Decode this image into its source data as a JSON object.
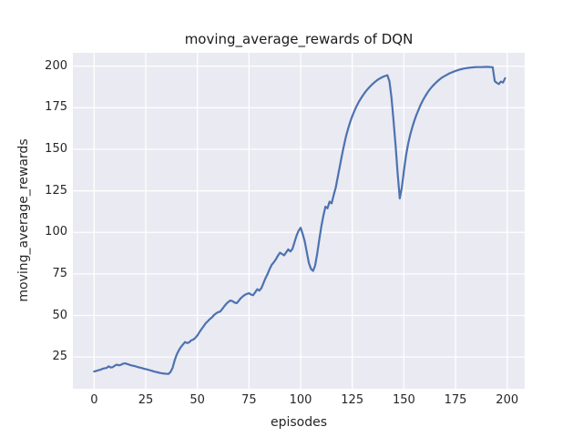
{
  "figure": {
    "background": "#ffffff"
  },
  "chart_data": {
    "type": "line",
    "title": "moving_average_rewards of DQN",
    "xlabel": "episodes",
    "ylabel": "moving_average_rewards",
    "x_ticks": [
      0,
      25,
      50,
      75,
      100,
      125,
      150,
      175,
      200
    ],
    "y_ticks": [
      25,
      50,
      75,
      100,
      125,
      150,
      175,
      200
    ],
    "xlim": [
      -10.3,
      208.5
    ],
    "ylim": [
      5.9,
      208.1
    ],
    "grid": true,
    "legend_position": "none",
    "style": {
      "line_color": "#4c72b0",
      "axes_background": "#eaeaf2",
      "grid_color": "#ffffff",
      "text_color": "#262626",
      "line_width": 2.2
    },
    "series": [
      {
        "name": "DQN moving average reward",
        "points": [
          [
            0,
            16.3
          ],
          [
            1,
            16.6
          ],
          [
            2,
            17.0
          ],
          [
            3,
            17.3
          ],
          [
            4,
            17.9
          ],
          [
            5,
            18.2
          ],
          [
            6,
            18.4
          ],
          [
            7,
            19.4
          ],
          [
            8,
            18.7
          ],
          [
            9,
            18.9
          ],
          [
            10,
            19.8
          ],
          [
            11,
            20.4
          ],
          [
            12,
            20.0
          ],
          [
            13,
            20.3
          ],
          [
            14,
            21.0
          ],
          [
            15,
            21.2
          ],
          [
            16,
            20.8
          ],
          [
            17,
            20.4
          ],
          [
            18,
            20.0
          ],
          [
            19,
            19.7
          ],
          [
            20,
            19.4
          ],
          [
            21,
            19.0
          ],
          [
            22,
            18.7
          ],
          [
            23,
            18.4
          ],
          [
            24,
            18.0
          ],
          [
            25,
            17.7
          ],
          [
            26,
            17.4
          ],
          [
            27,
            17.0
          ],
          [
            28,
            16.7
          ],
          [
            29,
            16.3
          ],
          [
            30,
            16.0
          ],
          [
            31,
            15.7
          ],
          [
            32,
            15.4
          ],
          [
            33,
            15.2
          ],
          [
            34,
            15.0
          ],
          [
            35,
            14.9
          ],
          [
            36,
            14.8
          ],
          [
            37,
            16.0
          ],
          [
            38,
            18.5
          ],
          [
            39,
            23.0
          ],
          [
            40,
            26.5
          ],
          [
            41,
            29.0
          ],
          [
            42,
            31.0
          ],
          [
            43,
            32.5
          ],
          [
            44,
            34.0
          ],
          [
            45,
            33.4
          ],
          [
            46,
            33.8
          ],
          [
            47,
            35.0
          ],
          [
            48,
            35.5
          ],
          [
            49,
            36.5
          ],
          [
            50,
            38.0
          ],
          [
            51,
            40.0
          ],
          [
            52,
            41.8
          ],
          [
            53,
            43.5
          ],
          [
            54,
            45.3
          ],
          [
            55,
            46.5
          ],
          [
            56,
            47.8
          ],
          [
            57,
            48.8
          ],
          [
            58,
            50.2
          ],
          [
            59,
            51.2
          ],
          [
            60,
            52.0
          ],
          [
            61,
            52.3
          ],
          [
            62,
            53.8
          ],
          [
            63,
            55.5
          ],
          [
            64,
            57.0
          ],
          [
            65,
            58.2
          ],
          [
            66,
            59.0
          ],
          [
            67,
            58.6
          ],
          [
            68,
            57.8
          ],
          [
            69,
            57.4
          ],
          [
            70,
            58.8
          ],
          [
            71,
            60.4
          ],
          [
            72,
            61.5
          ],
          [
            73,
            62.4
          ],
          [
            74,
            63.0
          ],
          [
            75,
            63.4
          ],
          [
            76,
            62.6
          ],
          [
            77,
            62.2
          ],
          [
            78,
            64.0
          ],
          [
            79,
            65.8
          ],
          [
            80,
            65.0
          ],
          [
            81,
            66.5
          ],
          [
            82,
            69.5
          ],
          [
            83,
            72.5
          ],
          [
            84,
            75.0
          ],
          [
            85,
            78.0
          ],
          [
            86,
            80.5
          ],
          [
            87,
            82.0
          ],
          [
            88,
            83.8
          ],
          [
            89,
            86.0
          ],
          [
            90,
            87.8
          ],
          [
            91,
            87.0
          ],
          [
            92,
            86.2
          ],
          [
            93,
            88.0
          ],
          [
            94,
            89.8
          ],
          [
            95,
            88.5
          ],
          [
            96,
            90.0
          ],
          [
            97,
            94.0
          ],
          [
            98,
            98.0
          ],
          [
            99,
            101.0
          ],
          [
            100,
            102.8
          ],
          [
            101,
            99.0
          ],
          [
            102,
            94.5
          ],
          [
            103,
            88.0
          ],
          [
            104,
            81.5
          ],
          [
            105,
            78.0
          ],
          [
            106,
            76.8
          ],
          [
            107,
            80.0
          ],
          [
            108,
            87.0
          ],
          [
            109,
            95.5
          ],
          [
            110,
            103.5
          ],
          [
            111,
            110.0
          ],
          [
            112,
            115.5
          ],
          [
            113,
            114.5
          ],
          [
            114,
            118.5
          ],
          [
            115,
            117.5
          ],
          [
            116,
            122.5
          ],
          [
            117,
            127.0
          ],
          [
            118,
            133.5
          ],
          [
            119,
            140.0
          ],
          [
            120,
            146.5
          ],
          [
            121,
            152.5
          ],
          [
            122,
            158.0
          ],
          [
            123,
            162.5
          ],
          [
            124,
            166.5
          ],
          [
            125,
            170.0
          ],
          [
            126,
            173.0
          ],
          [
            127,
            175.8
          ],
          [
            128,
            178.2
          ],
          [
            129,
            180.3
          ],
          [
            130,
            182.2
          ],
          [
            131,
            184.0
          ],
          [
            132,
            185.6
          ],
          [
            133,
            187.0
          ],
          [
            134,
            188.3
          ],
          [
            135,
            189.5
          ],
          [
            136,
            190.6
          ],
          [
            137,
            191.6
          ],
          [
            138,
            192.4
          ],
          [
            139,
            193.1
          ],
          [
            140,
            193.7
          ],
          [
            141,
            194.2
          ],
          [
            142,
            194.6
          ],
          [
            143,
            191.0
          ],
          [
            144,
            181.0
          ],
          [
            145,
            167.0
          ],
          [
            146,
            152.0
          ],
          [
            147,
            135.0
          ],
          [
            148,
            120.5
          ],
          [
            149,
            127.0
          ],
          [
            150,
            137.0
          ],
          [
            151,
            146.0
          ],
          [
            152,
            153.0
          ],
          [
            153,
            158.5
          ],
          [
            154,
            163.0
          ],
          [
            155,
            167.0
          ],
          [
            156,
            170.5
          ],
          [
            157,
            173.5
          ],
          [
            158,
            176.5
          ],
          [
            159,
            179.0
          ],
          [
            160,
            181.3
          ],
          [
            161,
            183.3
          ],
          [
            162,
            185.2
          ],
          [
            163,
            186.8
          ],
          [
            164,
            188.2
          ],
          [
            165,
            189.5
          ],
          [
            166,
            190.7
          ],
          [
            167,
            191.8
          ],
          [
            168,
            192.8
          ],
          [
            169,
            193.6
          ],
          [
            170,
            194.3
          ],
          [
            171,
            195.0
          ],
          [
            172,
            195.7
          ],
          [
            173,
            196.2
          ],
          [
            174,
            196.7
          ],
          [
            175,
            197.2
          ],
          [
            176,
            197.6
          ],
          [
            177,
            198.0
          ],
          [
            178,
            198.3
          ],
          [
            179,
            198.6
          ],
          [
            180,
            198.8
          ],
          [
            181,
            199.0
          ],
          [
            182,
            199.2
          ],
          [
            183,
            199.3
          ],
          [
            184,
            199.4
          ],
          [
            185,
            199.5
          ],
          [
            186,
            199.5
          ],
          [
            187,
            199.5
          ],
          [
            188,
            199.5
          ],
          [
            189,
            199.6
          ],
          [
            190,
            199.6
          ],
          [
            191,
            199.6
          ],
          [
            192,
            199.5
          ],
          [
            193,
            199.4
          ],
          [
            194,
            191.0
          ],
          [
            195,
            190.0
          ],
          [
            196,
            189.3
          ],
          [
            197,
            190.8
          ],
          [
            198,
            190.2
          ],
          [
            199,
            192.8
          ]
        ]
      }
    ]
  }
}
